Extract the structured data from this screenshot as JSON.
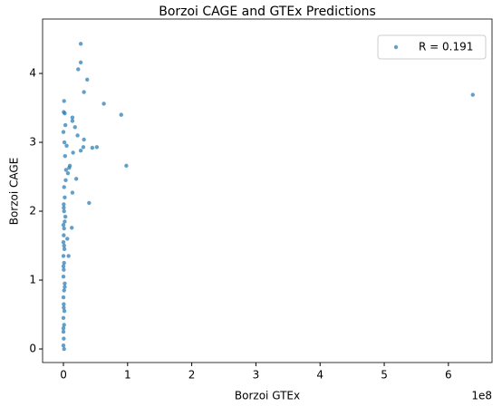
{
  "chart_data": {
    "type": "scatter",
    "title": "Borzoi CAGE and GTEx Predictions",
    "xlabel": "Borzoi GTEx",
    "ylabel": "Borzoi CAGE",
    "x_offset_label": "1e8",
    "series": [
      {
        "name": "R = 0.191",
        "color": "#1f77b4",
        "x": [
          638000000,
          27000000,
          27000000,
          23000000,
          37000000,
          32000000,
          63000000,
          90000000,
          14000000,
          14000000,
          18000000,
          32000000,
          22000000,
          31000000,
          45000000,
          52000000,
          98000000,
          27000000,
          15000000,
          20000000,
          14000000,
          40000000,
          13000000,
          6000000,
          8000000,
          10000000,
          9000000,
          7000000,
          5000000,
          3000000,
          2000000,
          1000000,
          500000,
          0,
          1500000,
          2500000,
          4000000,
          3500000,
          1000000,
          2000000,
          500000,
          1000000,
          3000000,
          2000000,
          1000000,
          500000,
          0,
          1500000,
          0,
          1000000,
          500000,
          0,
          2000000,
          1000000,
          0,
          500000,
          1500000,
          0,
          1000000,
          0,
          500000,
          0,
          1000000,
          0,
          500000,
          2000000,
          0,
          1000000,
          0,
          500000
        ],
        "y": [
          3.69,
          4.43,
          4.16,
          4.06,
          3.91,
          3.73,
          3.56,
          3.4,
          3.36,
          3.31,
          3.22,
          3.04,
          3.1,
          2.93,
          2.92,
          2.93,
          2.66,
          2.88,
          2.85,
          2.47,
          2.27,
          2.12,
          1.76,
          1.6,
          1.35,
          2.66,
          2.63,
          2.55,
          2.95,
          3.25,
          3.42,
          3.6,
          3.44,
          3.15,
          3.0,
          2.8,
          2.6,
          2.45,
          2.35,
          2.2,
          2.1,
          2.0,
          1.92,
          1.85,
          1.75,
          1.65,
          1.55,
          1.45,
          1.35,
          1.25,
          1.15,
          1.05,
          0.95,
          0.85,
          0.75,
          0.65,
          0.55,
          0.45,
          0.35,
          0.25,
          0.15,
          0.05,
          0.0,
          0.3,
          0.6,
          0.9,
          1.2,
          1.5,
          1.8,
          2.05
        ]
      }
    ],
    "xlim": [
      -32500000,
      668000000
    ],
    "xticks": [
      {
        "value": 0,
        "label": "0"
      },
      {
        "value": 100000000,
        "label": "1"
      },
      {
        "value": 200000000,
        "label": "2"
      },
      {
        "value": 300000000,
        "label": "3"
      },
      {
        "value": 400000000,
        "label": "4"
      },
      {
        "value": 500000000,
        "label": "5"
      },
      {
        "value": 600000000,
        "label": "6"
      }
    ],
    "ylim": [
      -0.197,
      4.79
    ],
    "yticks": [
      0,
      1,
      2,
      3,
      4
    ],
    "legend": "upper right",
    "grid": false
  }
}
